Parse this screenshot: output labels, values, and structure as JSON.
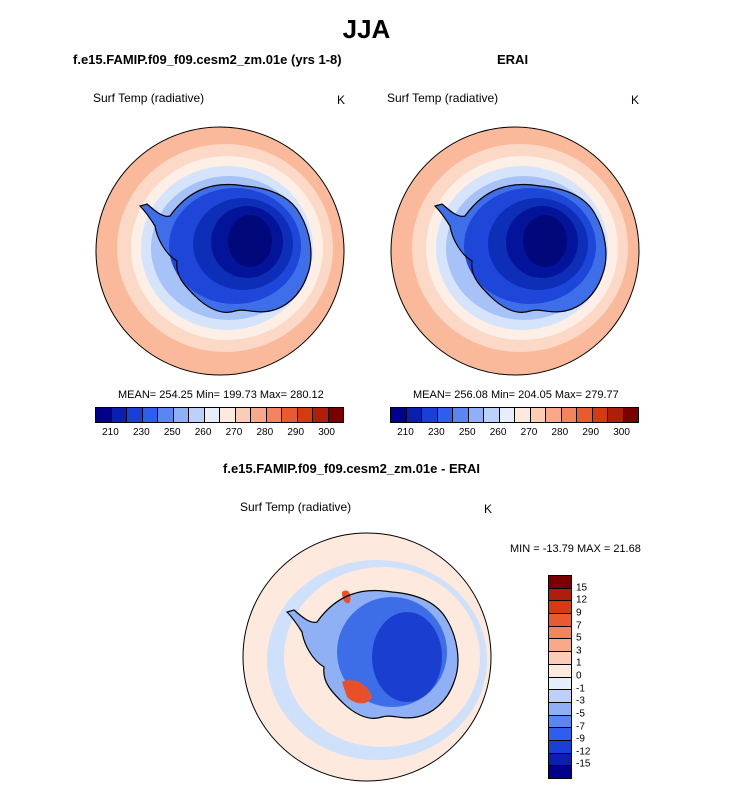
{
  "title": "JJA",
  "panels": [
    {
      "id": "model",
      "title": "f.e15.FAMIP.f09_f09.cesm2_zm.01e (yrs 1-8)",
      "variable": "Surf Temp (radiative)",
      "units": "K",
      "stats": "MEAN= 254.25  Min= 199.73  Max= 280.12"
    },
    {
      "id": "obs",
      "title": "ERAI",
      "variable": "Surf Temp (radiative)",
      "units": "K",
      "stats": "MEAN= 256.08  Min= 204.05  Max= 279.77"
    },
    {
      "id": "diff",
      "title": "f.e15.FAMIP.f09_f09.cesm2_zm.01e - ERAI",
      "variable": "Surf Temp (radiative)",
      "units": "K",
      "stats": "MIN = -13.79 MAX =  21.68"
    }
  ],
  "colorbar_abs": {
    "labels": [
      "210",
      "230",
      "250",
      "260",
      "270",
      "280",
      "290",
      "300"
    ],
    "colors": [
      "#00008b",
      "#0a1fb0",
      "#1a3fd6",
      "#2e5ef0",
      "#5b86f2",
      "#8faff6",
      "#bcd0f8",
      "#e6eefc",
      "#fde9dd",
      "#fbcdb5",
      "#f7a98a",
      "#f3845f",
      "#ea5a30",
      "#d63a13",
      "#b01e0a",
      "#7a0000"
    ]
  },
  "colorbar_diff": {
    "labels": [
      "15",
      "12",
      "9",
      "7",
      "5",
      "3",
      "1",
      "0",
      "-1",
      "-3",
      "-5",
      "-7",
      "-9",
      "-12",
      "-15"
    ],
    "colors": [
      "#7a0000",
      "#b01e0a",
      "#d63a13",
      "#ea5a30",
      "#f3845f",
      "#f7a98a",
      "#fbcdb5",
      "#fde9dd",
      "#e6eefc",
      "#bcd0f8",
      "#8faff6",
      "#5b86f2",
      "#2e5ef0",
      "#1a3fd6",
      "#0a1fb0",
      "#00008b"
    ]
  },
  "map_colors": {
    "outer": "#f9b99a",
    "ring1": "#fcd8c6",
    "ring2": "#fdeee6",
    "ring3": "#d6e4fb",
    "ring4": "#a7c2f6",
    "ice1": "#3f6fe8",
    "ice2": "#1e46d8",
    "ice3": "#0d2fb8",
    "ice4": "#04149a",
    "ice5": "#00087a",
    "diff_bg": "#fde9dd",
    "diff_blue1": "#cfe0fa",
    "diff_blue2": "#8fb0f4",
    "diff_blue3": "#3d6ee8",
    "diff_blue4": "#1a3fd0",
    "diff_red": "#e8502a"
  }
}
